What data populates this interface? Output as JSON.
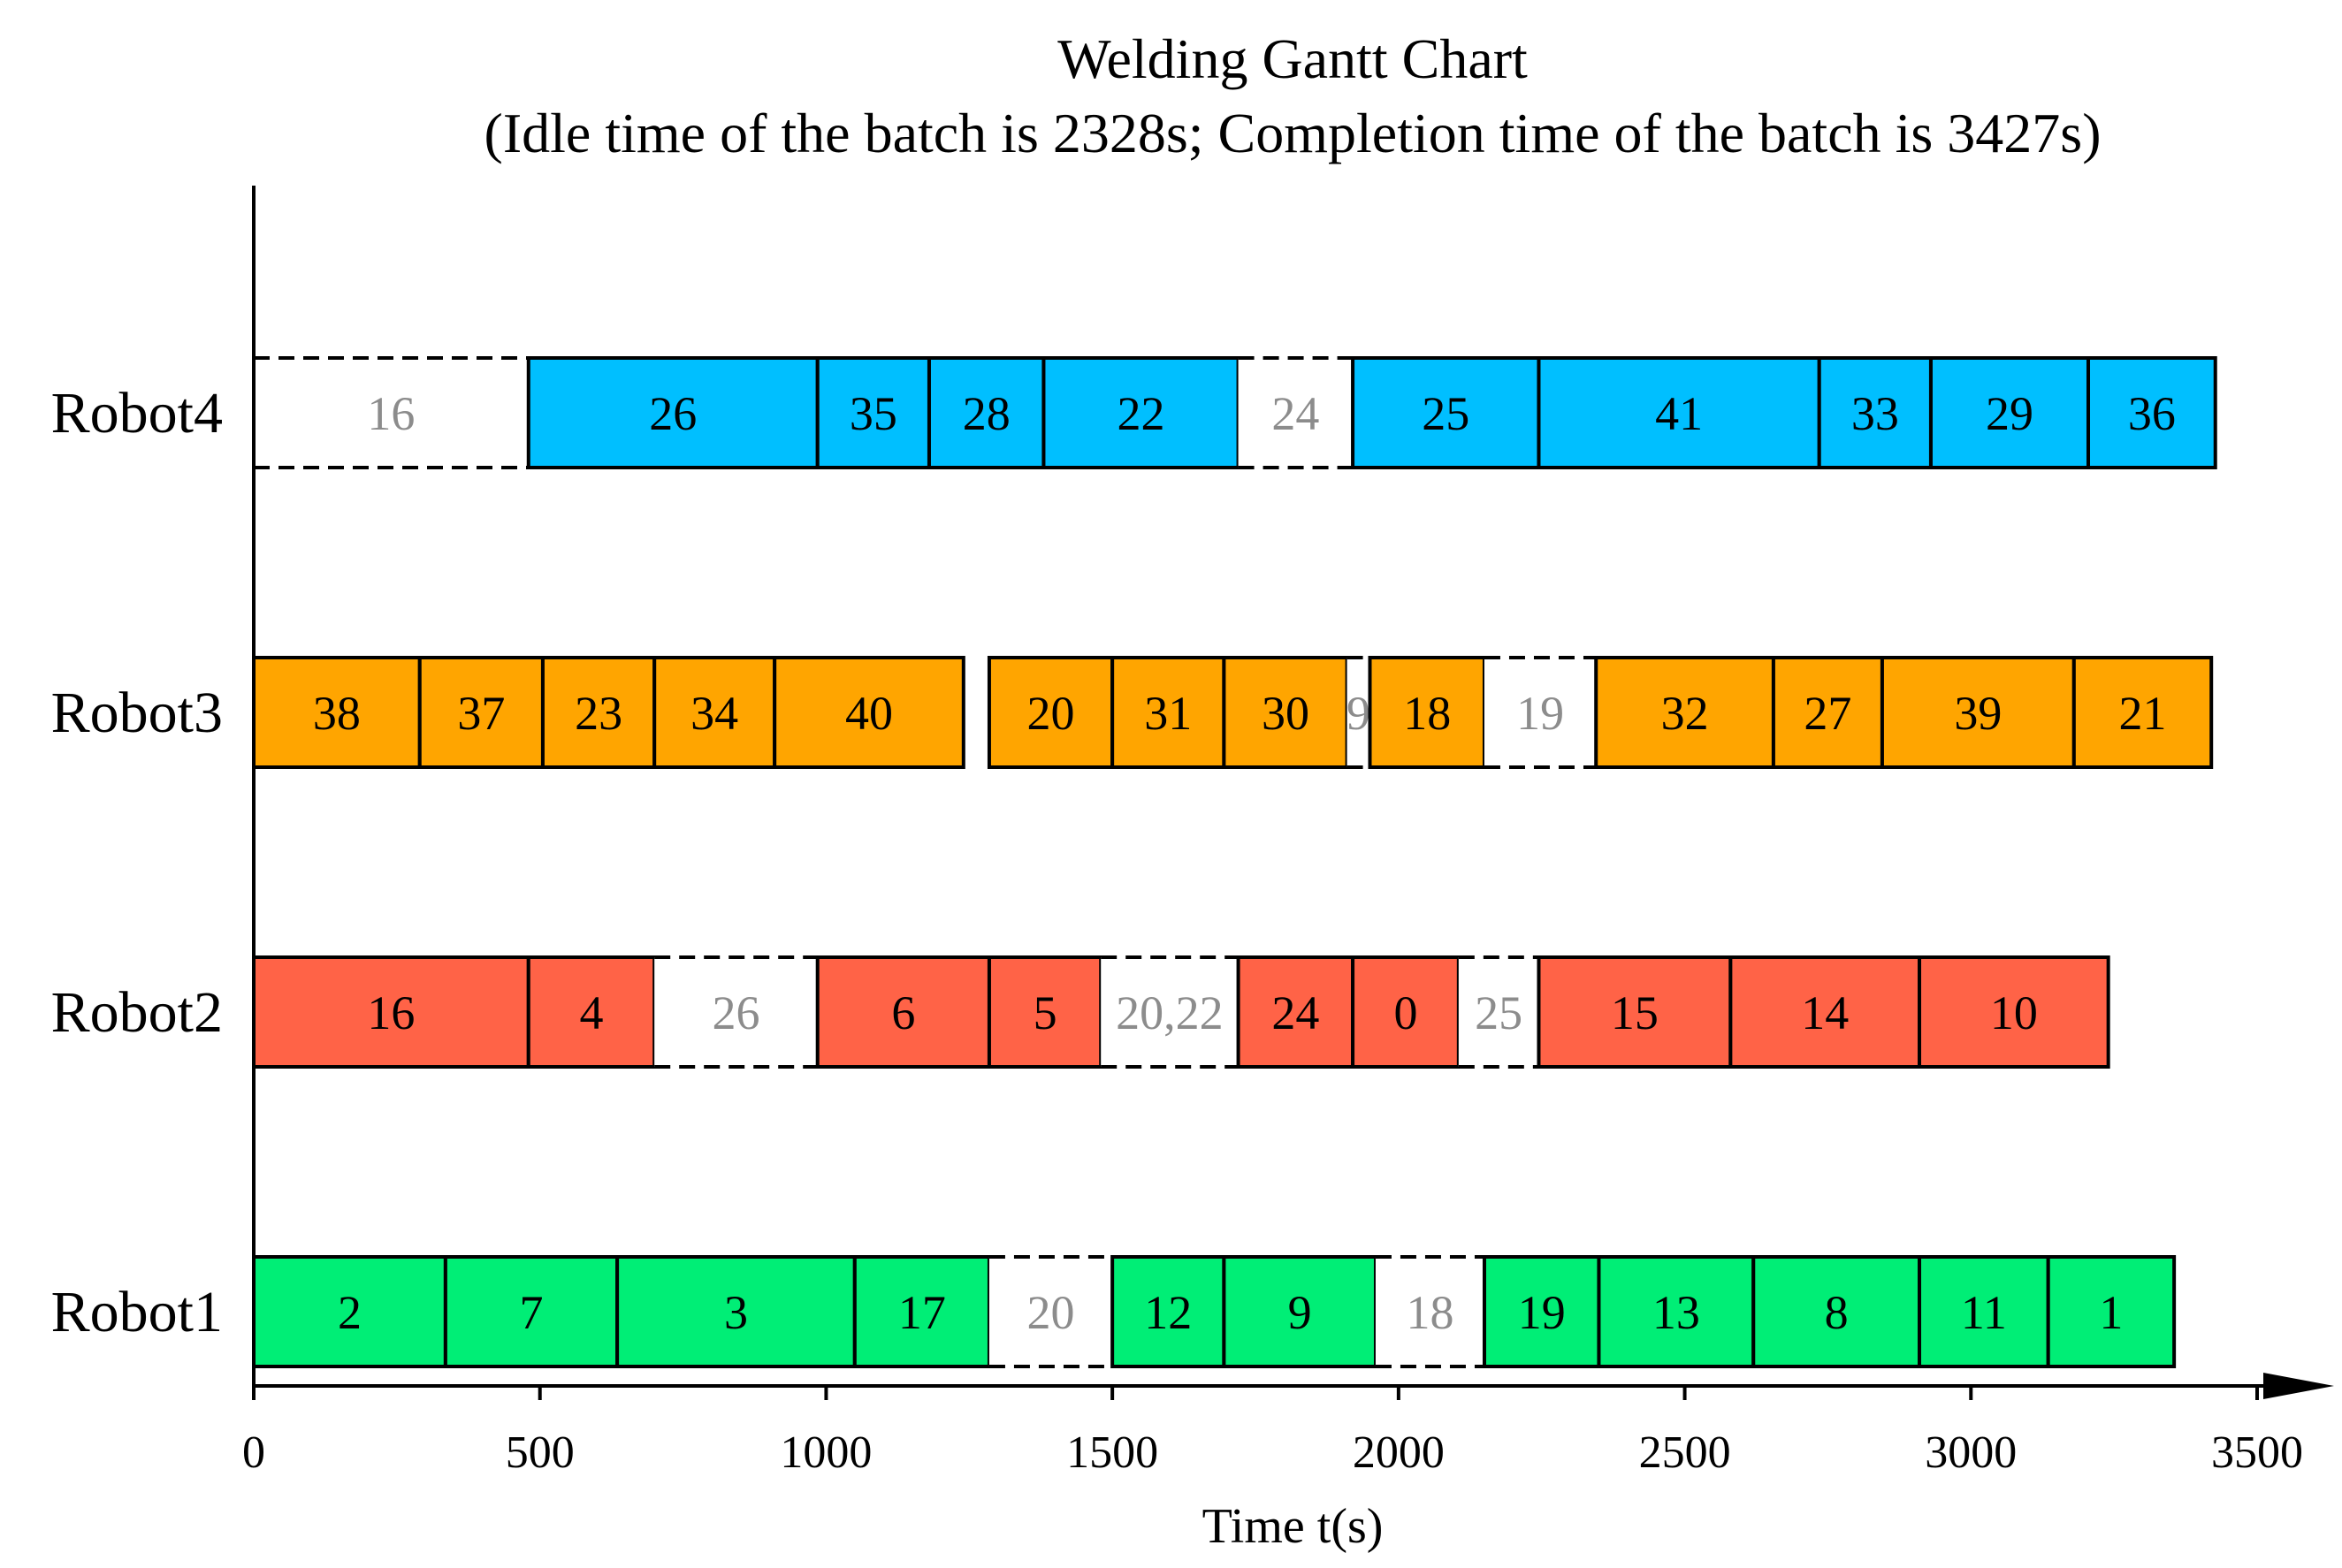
{
  "chart_data": {
    "type": "gantt",
    "title": "Welding Gantt Chart",
    "subtitle": "(Idle time of the batch is 2328s; Completion time of the batch is 3427s)",
    "xlabel": "Time t(s)",
    "xlim": [
      0,
      3500
    ],
    "x_ticks": [
      "0",
      "500",
      "1000",
      "1500",
      "2000",
      "2500",
      "3000",
      "3500"
    ],
    "x_tick_values": [
      0,
      500,
      1000,
      1500,
      2000,
      2500,
      3000,
      3500
    ],
    "colors": {
      "Robot1": "#00ee76",
      "Robot2": "#ff6347",
      "Robot3": "#ffa500",
      "Robot4": "#00bfff",
      "idle_text": "#8c8c8c"
    },
    "robots": [
      {
        "name": "Robot4",
        "tasks": [
          {
            "label": "16",
            "start": 0,
            "end": 480,
            "idle": true
          },
          {
            "label": "26",
            "start": 480,
            "end": 985,
            "idle": false
          },
          {
            "label": "35",
            "start": 985,
            "end": 1180,
            "idle": false
          },
          {
            "label": "28",
            "start": 1180,
            "end": 1380,
            "idle": false
          },
          {
            "label": "22",
            "start": 1380,
            "end": 1720,
            "idle": false
          },
          {
            "label": "24",
            "start": 1720,
            "end": 1920,
            "idle": true
          },
          {
            "label": "25",
            "start": 1920,
            "end": 2245,
            "idle": false
          },
          {
            "label": "41",
            "start": 2245,
            "end": 2735,
            "idle": false
          },
          {
            "label": "33",
            "start": 2735,
            "end": 2930,
            "idle": false
          },
          {
            "label": "29",
            "start": 2930,
            "end": 3205,
            "idle": false
          },
          {
            "label": "36",
            "start": 3205,
            "end": 3427,
            "idle": false
          }
        ]
      },
      {
        "name": "Robot3",
        "tasks": [
          {
            "label": "38",
            "start": 0,
            "end": 290,
            "idle": false
          },
          {
            "label": "37",
            "start": 290,
            "end": 505,
            "idle": false
          },
          {
            "label": "23",
            "start": 505,
            "end": 700,
            "idle": false
          },
          {
            "label": "34",
            "start": 700,
            "end": 910,
            "idle": false
          },
          {
            "label": "40",
            "start": 910,
            "end": 1240,
            "idle": false
          },
          {
            "label": "20",
            "start": 1285,
            "end": 1500,
            "idle": false
          },
          {
            "label": "31",
            "start": 1500,
            "end": 1695,
            "idle": false
          },
          {
            "label": "30",
            "start": 1695,
            "end": 1910,
            "idle": false
          },
          {
            "label": "9",
            "start": 1910,
            "end": 1950,
            "idle": true
          },
          {
            "label": "18",
            "start": 1950,
            "end": 2150,
            "idle": false
          },
          {
            "label": "19",
            "start": 2150,
            "end": 2345,
            "idle": true
          },
          {
            "label": "32",
            "start": 2345,
            "end": 2655,
            "idle": false
          },
          {
            "label": "27",
            "start": 2655,
            "end": 2845,
            "idle": false
          },
          {
            "label": "39",
            "start": 2845,
            "end": 3180,
            "idle": false
          },
          {
            "label": "21",
            "start": 3180,
            "end": 3420,
            "idle": false
          }
        ]
      },
      {
        "name": "Robot2",
        "tasks": [
          {
            "label": "16",
            "start": 0,
            "end": 480,
            "idle": false
          },
          {
            "label": "4",
            "start": 480,
            "end": 700,
            "idle": false
          },
          {
            "label": "26",
            "start": 700,
            "end": 985,
            "idle": true
          },
          {
            "label": "6",
            "start": 985,
            "end": 1285,
            "idle": false
          },
          {
            "label": "5",
            "start": 1285,
            "end": 1480,
            "idle": false
          },
          {
            "label": "20,22",
            "start": 1480,
            "end": 1720,
            "idle": true
          },
          {
            "label": "24",
            "start": 1720,
            "end": 1920,
            "idle": false
          },
          {
            "label": "0",
            "start": 1920,
            "end": 2105,
            "idle": false
          },
          {
            "label": "25",
            "start": 2105,
            "end": 2245,
            "idle": true
          },
          {
            "label": "15",
            "start": 2245,
            "end": 2580,
            "idle": false
          },
          {
            "label": "14",
            "start": 2580,
            "end": 2910,
            "idle": false
          },
          {
            "label": "10",
            "start": 2910,
            "end": 3240,
            "idle": false
          }
        ]
      },
      {
        "name": "Robot1",
        "tasks": [
          {
            "label": "2",
            "start": 0,
            "end": 335,
            "idle": false
          },
          {
            "label": "7",
            "start": 335,
            "end": 635,
            "idle": false
          },
          {
            "label": "3",
            "start": 635,
            "end": 1050,
            "idle": false
          },
          {
            "label": "17",
            "start": 1050,
            "end": 1285,
            "idle": false
          },
          {
            "label": "20",
            "start": 1285,
            "end": 1500,
            "idle": true
          },
          {
            "label": "12",
            "start": 1500,
            "end": 1695,
            "idle": false
          },
          {
            "label": "9",
            "start": 1695,
            "end": 1960,
            "idle": false
          },
          {
            "label": "18",
            "start": 1960,
            "end": 2150,
            "idle": true
          },
          {
            "label": "19",
            "start": 2150,
            "end": 2350,
            "idle": false
          },
          {
            "label": "13",
            "start": 2350,
            "end": 2620,
            "idle": false
          },
          {
            "label": "8",
            "start": 2620,
            "end": 2910,
            "idle": false
          },
          {
            "label": "11",
            "start": 2910,
            "end": 3135,
            "idle": false
          },
          {
            "label": "1",
            "start": 3135,
            "end": 3355,
            "idle": false
          }
        ]
      }
    ]
  }
}
